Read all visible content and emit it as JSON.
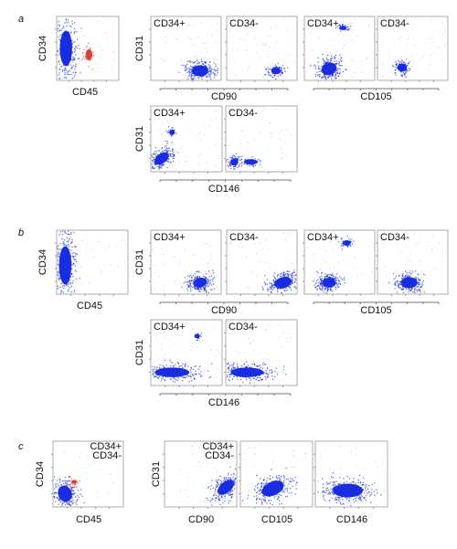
{
  "panels": [
    {
      "label": "a",
      "cd45_plot": {
        "y_label": "CD34",
        "x_label": "CD45"
      },
      "rows": [
        {
          "y_label": "CD31",
          "groups": [
            {
              "x_label": "CD90",
              "plots": [
                "CD34+",
                "CD34-"
              ]
            },
            {
              "x_label": "CD105",
              "plots": [
                "CD34+",
                "CD34-"
              ]
            }
          ]
        },
        {
          "y_label": "CD31",
          "groups": [
            {
              "x_label": "CD146",
              "plots": [
                "CD34+",
                "CD34-"
              ]
            }
          ]
        }
      ]
    },
    {
      "label": "b",
      "cd45_plot": {
        "y_label": "CD34",
        "x_label": "CD45"
      },
      "rows": [
        {
          "y_label": "CD31",
          "groups": [
            {
              "x_label": "CD90",
              "plots": [
                "CD34+",
                "CD34-"
              ]
            },
            {
              "x_label": "CD105",
              "plots": [
                "CD34+",
                "CD34-"
              ]
            }
          ]
        },
        {
          "y_label": "CD31",
          "groups": [
            {
              "x_label": "CD146",
              "plots": [
                "CD34+",
                "CD34-"
              ]
            }
          ]
        }
      ]
    },
    {
      "label": "c",
      "cd45_plot": {
        "y_label": "CD34",
        "x_label": "CD45",
        "legend": [
          "CD34+",
          "CD34-"
        ]
      },
      "row": {
        "y_label": "CD31",
        "legend": [
          "CD34+",
          "CD34-"
        ],
        "x_labels": [
          "CD90",
          "CD105",
          "CD146"
        ]
      }
    }
  ]
}
